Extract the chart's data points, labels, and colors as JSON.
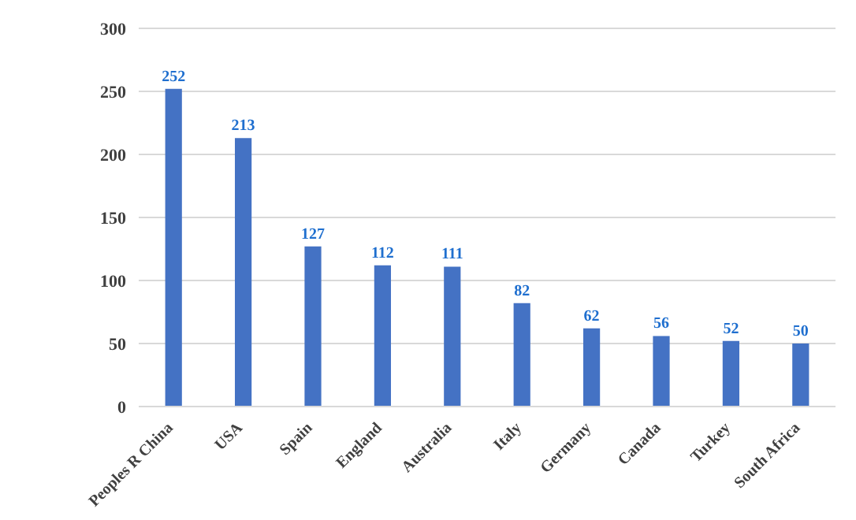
{
  "chart_data": {
    "type": "bar",
    "categories": [
      "Peoples R China",
      "USA",
      "Spain",
      "England",
      "Australia",
      "Italy",
      "Germany",
      "Canada",
      "Turkey",
      "South Africa"
    ],
    "values": [
      252,
      213,
      127,
      112,
      111,
      82,
      62,
      56,
      52,
      50
    ],
    "color": "#4472c4",
    "ylim": [
      0,
      300
    ],
    "yticks": [
      0,
      50,
      100,
      150,
      200,
      250,
      300
    ],
    "grid": "y",
    "data_labels": true
  }
}
